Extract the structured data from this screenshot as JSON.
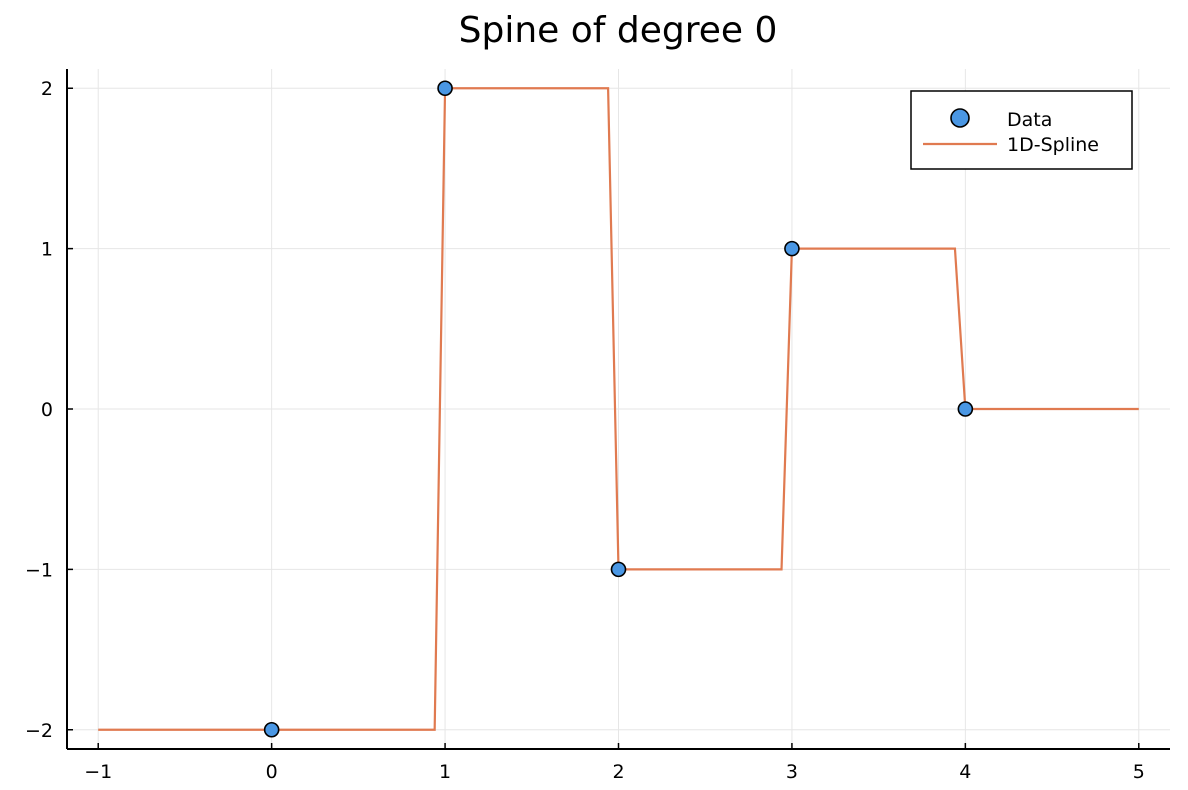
{
  "chart_data": {
    "type": "line",
    "title": "Spine of degree 0",
    "xlabel": "",
    "ylabel": "",
    "xlim": [
      -1.18,
      5.18
    ],
    "ylim": [
      -2.12,
      2.12
    ],
    "x_ticks": [
      -1,
      0,
      1,
      2,
      3,
      4,
      5
    ],
    "x_tick_labels": [
      "−1",
      "0",
      "1",
      "2",
      "3",
      "4",
      "5"
    ],
    "y_ticks": [
      -2,
      -1,
      0,
      1,
      2
    ],
    "y_tick_labels": [
      "−2",
      "−1",
      "0",
      "1",
      "2"
    ],
    "grid": true,
    "legend_position": "top-right",
    "series": [
      {
        "name": "Data",
        "kind": "scatter",
        "color": "#4a97e4",
        "x": [
          0,
          1,
          2,
          3,
          4
        ],
        "y": [
          -2,
          2,
          -1,
          1,
          0
        ]
      },
      {
        "name": "1D-Spline",
        "kind": "line",
        "color": "#e07a50",
        "x": [
          -1,
          0.94,
          1,
          1.94,
          2,
          2.94,
          3,
          3.94,
          4,
          5
        ],
        "y": [
          -2,
          -2,
          2,
          2,
          -1,
          -1,
          1,
          1,
          0,
          0
        ]
      }
    ]
  }
}
